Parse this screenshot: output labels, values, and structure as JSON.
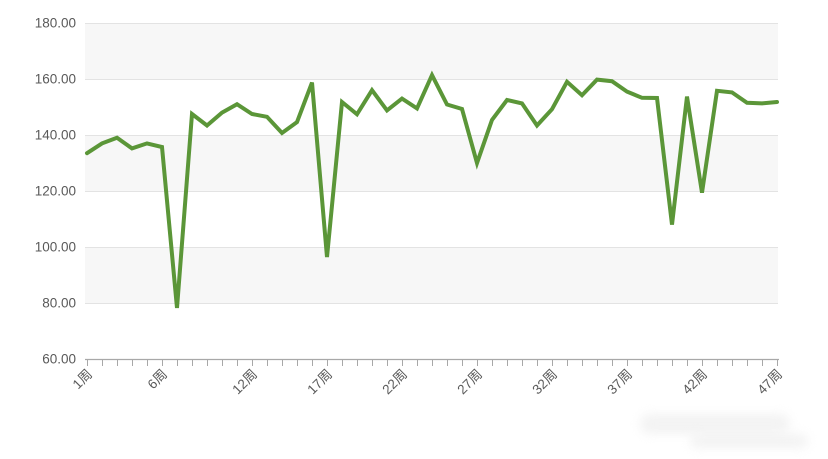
{
  "page": {
    "title": "",
    "background": "#ffffff"
  },
  "chart_data": {
    "type": "line",
    "title": "",
    "subtitle": "",
    "xlabel": "",
    "ylabel": "",
    "x_unit_suffix": "周",
    "weeks": [
      1,
      2,
      3,
      4,
      5,
      6,
      7,
      8,
      9,
      10,
      11,
      12,
      13,
      14,
      15,
      16,
      17,
      18,
      19,
      20,
      21,
      22,
      23,
      24,
      25,
      26,
      27,
      28,
      29,
      30,
      31,
      32,
      33,
      34,
      35,
      36,
      37,
      38,
      39,
      40,
      41,
      42,
      43,
      44,
      45,
      46,
      47
    ],
    "values": [
      133.5,
      137.0,
      139.0,
      135.2,
      137.0,
      135.7,
      78.2,
      147.5,
      143.4,
      148.0,
      151.0,
      147.5,
      146.5,
      140.7,
      144.6,
      158.7,
      96.4,
      151.8,
      147.4,
      156.0,
      148.8,
      153.0,
      149.5,
      161.4,
      150.9,
      149.3,
      130.0,
      145.4,
      152.5,
      151.3,
      143.4,
      149.2,
      159.0,
      154.2,
      159.8,
      159.2,
      155.5,
      153.3,
      153.2,
      108.0,
      153.7,
      119.4,
      155.8,
      155.2,
      151.5,
      151.3,
      151.8
    ],
    "x_tick_weeks": [
      1,
      6,
      12,
      17,
      22,
      27,
      32,
      37,
      42,
      47
    ],
    "x_tick_labels": [
      "1周",
      "6周",
      "12周",
      "17周",
      "22周",
      "27周",
      "32周",
      "37周",
      "42周",
      "47周"
    ],
    "y_ticks": [
      60,
      80,
      100,
      120,
      140,
      160,
      180
    ],
    "y_tick_labels": [
      "60.00",
      "80.00",
      "100.00",
      "120.00",
      "140.00",
      "160.00",
      "180.00"
    ],
    "ylim": [
      60,
      180
    ],
    "legend": "none",
    "grid": {
      "horizontal_gridlines": true,
      "alternating_bands": true,
      "band_ranges": [
        [
          160,
          180
        ],
        [
          120,
          140
        ],
        [
          80,
          100
        ]
      ]
    }
  },
  "colors": {
    "line": "#5b9638",
    "band": "#f7f7f7",
    "gridline": "#e3e3e3",
    "axis": "#a8a8a8",
    "labels": "#595959",
    "background": "#ffffff",
    "watermark": "#f0f0f0"
  }
}
